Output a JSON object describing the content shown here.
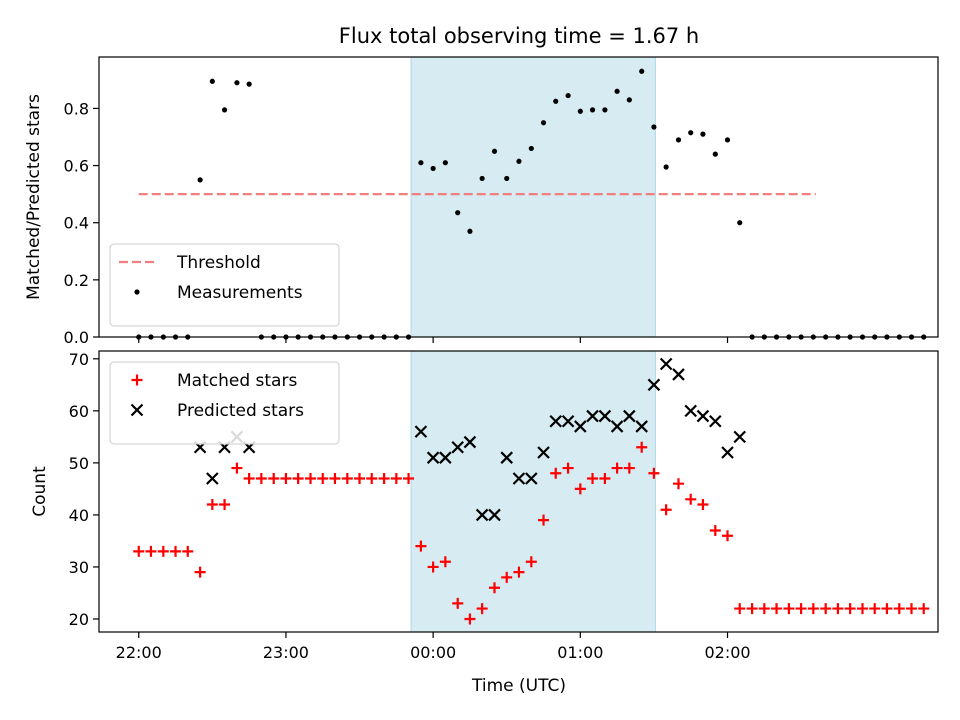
{
  "chart_data": {
    "type": "scatter",
    "title": "Flux total observing time = 1.67 h",
    "xlabel": "Time (UTC)",
    "x_ticks": [
      "22:00",
      "23:00",
      "00:00",
      "01:00",
      "02:00"
    ],
    "x_tick_hours": [
      22,
      23,
      24,
      25,
      26
    ],
    "xlim_hours": [
      21.73,
      27.43
    ],
    "highlight_span_hours": [
      23.85,
      25.51
    ],
    "highlight_color": "#add8e6",
    "panels": [
      {
        "ylabel": "Matched/Predicted stars",
        "ylim": [
          0,
          0.98
        ],
        "yticks": [
          0.0,
          0.2,
          0.4,
          0.6,
          0.8
        ],
        "legend_position": "lower-left",
        "threshold": {
          "name": "Threshold",
          "value": 0.5,
          "x_range_hours": [
            22.0,
            26.6
          ],
          "color": "#f08080"
        },
        "series": [
          {
            "name": "Measurements",
            "marker": "dot",
            "color": "#000000",
            "points": [
              [
                22.0,
                0
              ],
              [
                22.083,
                0
              ],
              [
                22.167,
                0
              ],
              [
                22.25,
                0
              ],
              [
                22.333,
                0
              ],
              [
                22.417,
                0.55
              ],
              [
                22.5,
                0.895
              ],
              [
                22.583,
                0.795
              ],
              [
                22.667,
                0.89
              ],
              [
                22.75,
                0.885
              ],
              [
                22.833,
                0
              ],
              [
                22.917,
                0
              ],
              [
                23.0,
                0
              ],
              [
                23.083,
                0
              ],
              [
                23.167,
                0
              ],
              [
                23.25,
                0
              ],
              [
                23.333,
                0
              ],
              [
                23.417,
                0
              ],
              [
                23.5,
                0
              ],
              [
                23.583,
                0
              ],
              [
                23.667,
                0
              ],
              [
                23.75,
                0
              ],
              [
                23.833,
                0
              ],
              [
                23.917,
                0.61
              ],
              [
                24.0,
                0.59
              ],
              [
                24.083,
                0.61
              ],
              [
                24.167,
                0.435
              ],
              [
                24.25,
                0.37
              ],
              [
                24.333,
                0.555
              ],
              [
                24.417,
                0.65
              ],
              [
                24.5,
                0.555
              ],
              [
                24.583,
                0.615
              ],
              [
                24.667,
                0.66
              ],
              [
                24.75,
                0.75
              ],
              [
                24.833,
                0.825
              ],
              [
                24.917,
                0.845
              ],
              [
                25.0,
                0.79
              ],
              [
                25.083,
                0.795
              ],
              [
                25.167,
                0.795
              ],
              [
                25.25,
                0.86
              ],
              [
                25.333,
                0.83
              ],
              [
                25.417,
                0.93
              ],
              [
                25.5,
                0.735
              ],
              [
                25.583,
                0.595
              ],
              [
                25.667,
                0.69
              ],
              [
                25.75,
                0.715
              ],
              [
                25.833,
                0.71
              ],
              [
                25.917,
                0.64
              ],
              [
                26.0,
                0.69
              ],
              [
                26.083,
                0.4
              ],
              [
                26.167,
                0
              ],
              [
                26.25,
                0
              ],
              [
                26.333,
                0
              ],
              [
                26.417,
                0
              ],
              [
                26.5,
                0
              ],
              [
                26.583,
                0
              ],
              [
                26.667,
                0
              ],
              [
                26.75,
                0
              ],
              [
                26.833,
                0
              ],
              [
                26.917,
                0
              ],
              [
                27.0,
                0
              ],
              [
                27.083,
                0
              ],
              [
                27.167,
                0
              ],
              [
                27.25,
                0
              ],
              [
                27.333,
                0
              ]
            ]
          }
        ]
      },
      {
        "ylabel": "Count",
        "ylim": [
          17.5,
          71.5
        ],
        "yticks": [
          20,
          30,
          40,
          50,
          60,
          70
        ],
        "legend_position": "upper-left",
        "series": [
          {
            "name": "Matched stars",
            "marker": "plus",
            "color": "#ff0000",
            "points": [
              [
                22.0,
                33
              ],
              [
                22.083,
                33
              ],
              [
                22.167,
                33
              ],
              [
                22.25,
                33
              ],
              [
                22.333,
                33
              ],
              [
                22.417,
                29
              ],
              [
                22.5,
                42
              ],
              [
                22.583,
                42
              ],
              [
                22.667,
                49
              ],
              [
                22.75,
                47
              ],
              [
                22.833,
                47
              ],
              [
                22.917,
                47
              ],
              [
                23.0,
                47
              ],
              [
                23.083,
                47
              ],
              [
                23.167,
                47
              ],
              [
                23.25,
                47
              ],
              [
                23.333,
                47
              ],
              [
                23.417,
                47
              ],
              [
                23.5,
                47
              ],
              [
                23.583,
                47
              ],
              [
                23.667,
                47
              ],
              [
                23.75,
                47
              ],
              [
                23.833,
                47
              ],
              [
                23.917,
                34
              ],
              [
                24.0,
                30
              ],
              [
                24.083,
                31
              ],
              [
                24.167,
                23
              ],
              [
                24.25,
                20
              ],
              [
                24.333,
                22
              ],
              [
                24.417,
                26
              ],
              [
                24.5,
                28
              ],
              [
                24.583,
                29
              ],
              [
                24.667,
                31
              ],
              [
                24.75,
                39
              ],
              [
                24.833,
                48
              ],
              [
                24.917,
                49
              ],
              [
                25.0,
                45
              ],
              [
                25.083,
                47
              ],
              [
                25.167,
                47
              ],
              [
                25.25,
                49
              ],
              [
                25.333,
                49
              ],
              [
                25.417,
                53
              ],
              [
                25.5,
                48
              ],
              [
                25.583,
                41
              ],
              [
                25.667,
                46
              ],
              [
                25.75,
                43
              ],
              [
                25.833,
                42
              ],
              [
                25.917,
                37
              ],
              [
                26.0,
                36
              ],
              [
                26.083,
                22
              ],
              [
                26.167,
                22
              ],
              [
                26.25,
                22
              ],
              [
                26.333,
                22
              ],
              [
                26.417,
                22
              ],
              [
                26.5,
                22
              ],
              [
                26.583,
                22
              ],
              [
                26.667,
                22
              ],
              [
                26.75,
                22
              ],
              [
                26.833,
                22
              ],
              [
                26.917,
                22
              ],
              [
                27.0,
                22
              ],
              [
                27.083,
                22
              ],
              [
                27.167,
                22
              ],
              [
                27.25,
                22
              ],
              [
                27.333,
                22
              ]
            ]
          },
          {
            "name": "Predicted stars",
            "marker": "cross",
            "color": "#000000",
            "points": [
              [
                22.417,
                53
              ],
              [
                22.5,
                47
              ],
              [
                22.583,
                53
              ],
              [
                22.667,
                55
              ],
              [
                22.75,
                53
              ],
              [
                23.917,
                56
              ],
              [
                24.0,
                51
              ],
              [
                24.083,
                51
              ],
              [
                24.167,
                53
              ],
              [
                24.25,
                54
              ],
              [
                24.333,
                40
              ],
              [
                24.417,
                40
              ],
              [
                24.5,
                51
              ],
              [
                24.583,
                47
              ],
              [
                24.667,
                47
              ],
              [
                24.75,
                52
              ],
              [
                24.833,
                58
              ],
              [
                24.917,
                58
              ],
              [
                25.0,
                57
              ],
              [
                25.083,
                59
              ],
              [
                25.167,
                59
              ],
              [
                25.25,
                57
              ],
              [
                25.333,
                59
              ],
              [
                25.417,
                57
              ],
              [
                25.5,
                65
              ],
              [
                25.583,
                69
              ],
              [
                25.667,
                67
              ],
              [
                25.75,
                60
              ],
              [
                25.833,
                59
              ],
              [
                25.917,
                58
              ],
              [
                26.0,
                52
              ],
              [
                26.083,
                55
              ]
            ]
          }
        ]
      }
    ]
  }
}
